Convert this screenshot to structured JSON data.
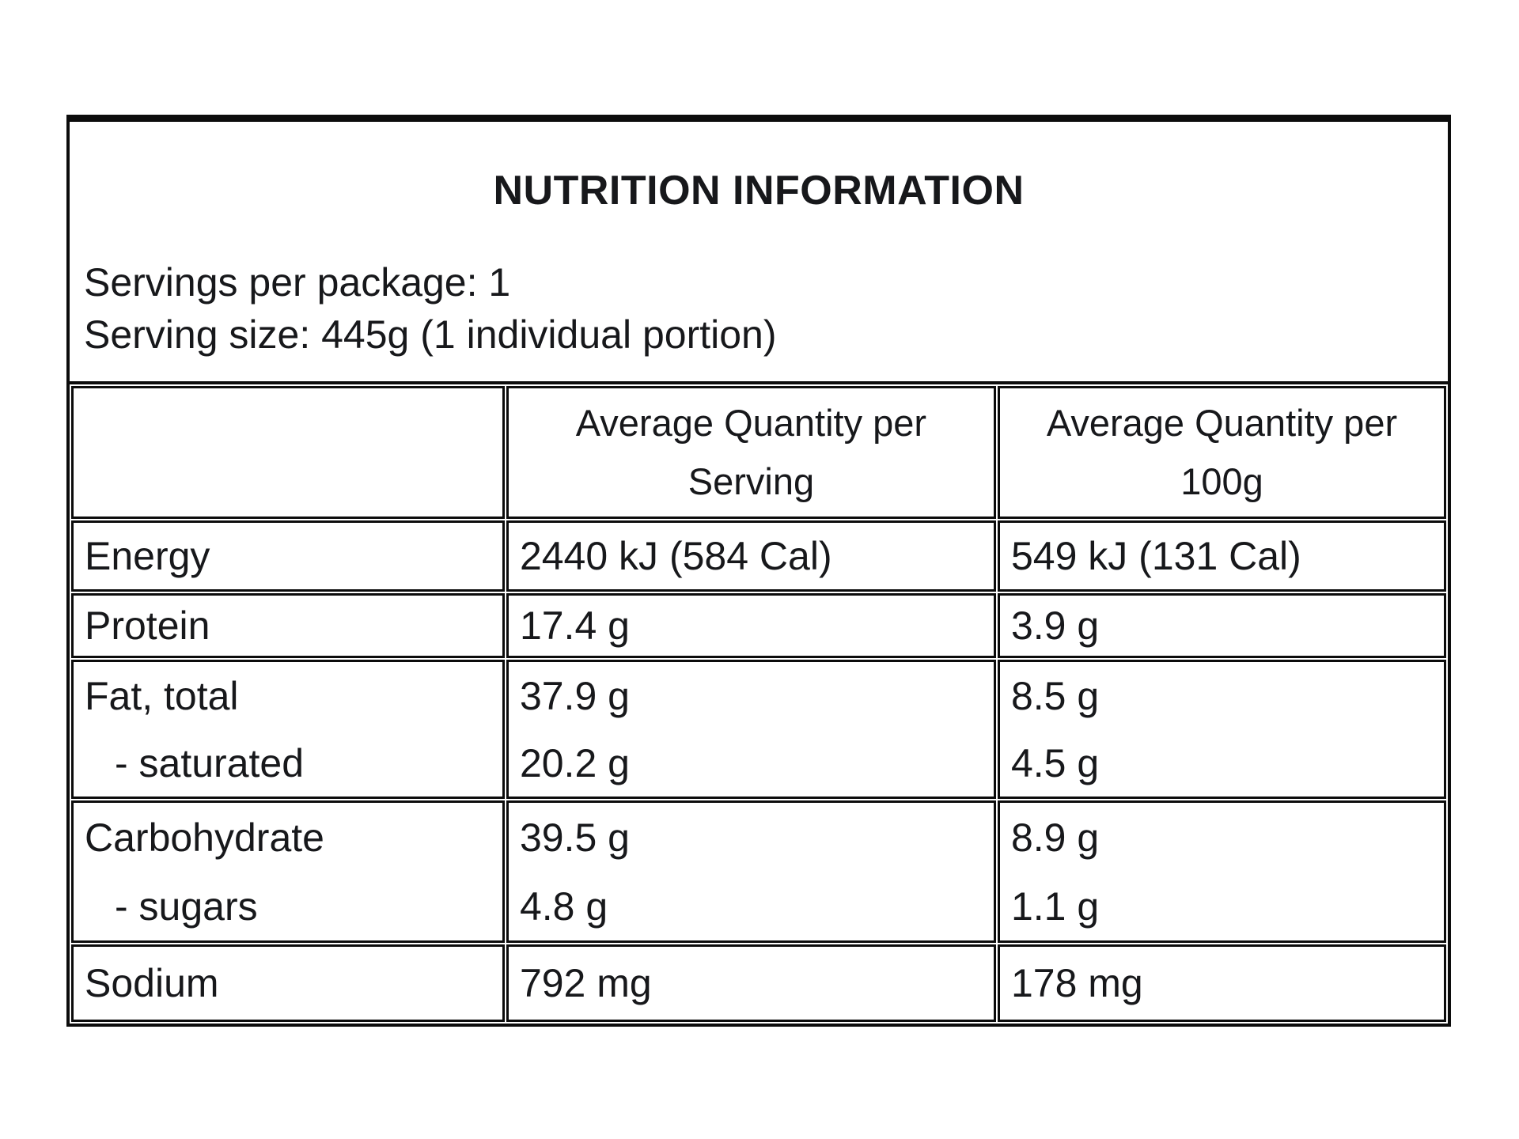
{
  "page": {
    "background_color": "#ffffff",
    "text_color": "#17181b",
    "border_color": "#0c0c0c"
  },
  "panel": {
    "title": "NUTRITION INFORMATION",
    "servings_per_package": "Servings per package: 1",
    "serving_size": "Serving size: 445g (1 individual portion)"
  },
  "table": {
    "columns": [
      {
        "id": "nutrient",
        "line1": "",
        "line2": ""
      },
      {
        "id": "per_serving",
        "line1": "Average Quantity per",
        "line2": "Serving"
      },
      {
        "id": "per_100g",
        "line1": "Average Quantity per",
        "line2": "100g"
      }
    ],
    "rows": [
      {
        "label": [
          "Energy"
        ],
        "per_serving": [
          "2440 kJ (584 Cal)"
        ],
        "per_100g": [
          "549 kJ (131 Cal)"
        ]
      },
      {
        "label": [
          "Protein"
        ],
        "per_serving": [
          "17.4 g"
        ],
        "per_100g": [
          "3.9 g"
        ]
      },
      {
        "label": [
          "Fat, total",
          "- saturated"
        ],
        "per_serving": [
          "37.9 g",
          "20.2 g"
        ],
        "per_100g": [
          "8.5 g",
          "4.5 g"
        ]
      },
      {
        "label": [
          "Carbohydrate",
          "- sugars"
        ],
        "per_serving": [
          "39.5 g",
          "4.8 g"
        ],
        "per_100g": [
          "8.9 g",
          "1.1 g"
        ]
      },
      {
        "label": [
          "Sodium"
        ],
        "per_serving": [
          "792 mg"
        ],
        "per_100g": [
          "178 mg"
        ]
      }
    ]
  }
}
